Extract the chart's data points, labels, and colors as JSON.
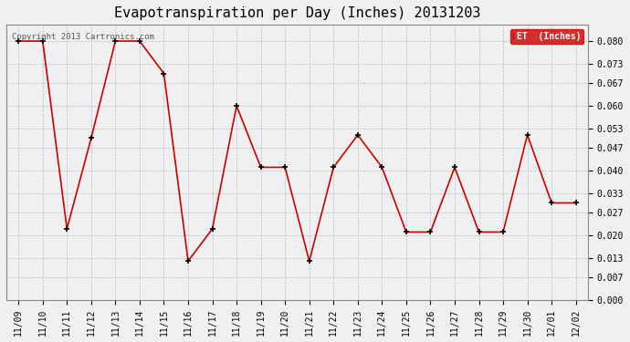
{
  "title": "Evapotranspiration per Day (Inches) 20131203",
  "legend_label": "ET  (Inches)",
  "copyright": "Copyright 2013 Cartronics.com",
  "x_labels": [
    "11/09",
    "11/10",
    "11/11",
    "11/12",
    "11/13",
    "11/14",
    "11/15",
    "11/16",
    "11/17",
    "11/18",
    "11/19",
    "11/20",
    "11/21",
    "11/22",
    "11/23",
    "11/24",
    "11/25",
    "11/26",
    "11/27",
    "11/28",
    "11/29",
    "11/30",
    "12/01",
    "12/02"
  ],
  "y_values": [
    0.08,
    0.08,
    0.022,
    0.05,
    0.08,
    0.08,
    0.07,
    0.012,
    0.022,
    0.06,
    0.041,
    0.041,
    0.012,
    0.041,
    0.051,
    0.041,
    0.021,
    0.021,
    0.041,
    0.021,
    0.021,
    0.051,
    0.03,
    0.03
  ],
  "line_color": "#cc0000",
  "marker_color": "#000000",
  "bg_color": "#f0f0f0",
  "grid_color": "#bbbbbb",
  "legend_bg": "#cc0000",
  "legend_text_color": "#ffffff",
  "y_ticks": [
    0.0,
    0.007,
    0.013,
    0.02,
    0.027,
    0.033,
    0.04,
    0.047,
    0.053,
    0.06,
    0.067,
    0.073,
    0.08
  ],
  "ylim": [
    0.0,
    0.085
  ]
}
